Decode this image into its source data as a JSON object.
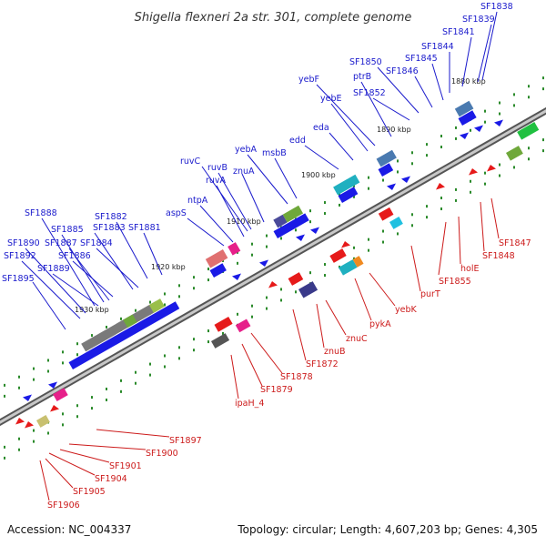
{
  "title": "Shigella flexneri 2a str. 301, complete genome",
  "accession": "Accession: NC_004337",
  "topology": "Topology: circular; Length: 4,607,203 bp; Genes: 4,305",
  "colors": {
    "forward": "#1a1ae6",
    "reverse": "#e61a1a",
    "backbone": "#8c8c8c"
  },
  "ticks": [
    {
      "label": "1880 kbp"
    },
    {
      "label": "1890 kbp"
    },
    {
      "label": "1900 kbp"
    },
    {
      "label": "1910 kbp"
    },
    {
      "label": "1920 kbp"
    },
    {
      "label": "1930 kbp"
    }
  ],
  "top_labels": [
    {
      "text": "SF1838"
    },
    {
      "text": "SF1839"
    },
    {
      "text": "SF1841"
    },
    {
      "text": "SF1844"
    },
    {
      "text": "SF1845"
    },
    {
      "text": "SF1846"
    },
    {
      "text": "SF1850"
    },
    {
      "text": "ptrB"
    },
    {
      "text": "yebF"
    },
    {
      "text": "SF1852"
    },
    {
      "text": "yebE"
    },
    {
      "text": "eda"
    },
    {
      "text": "edd"
    },
    {
      "text": "yebA"
    },
    {
      "text": "msbB"
    },
    {
      "text": "ruvC"
    },
    {
      "text": "ruvB"
    },
    {
      "text": "znuA"
    },
    {
      "text": "ruvA"
    },
    {
      "text": "ntpA"
    },
    {
      "text": "aspS"
    },
    {
      "text": "SF1888"
    },
    {
      "text": "SF1882"
    },
    {
      "text": "SF1885"
    },
    {
      "text": "SF1883"
    },
    {
      "text": "SF1881"
    },
    {
      "text": "SF1890"
    },
    {
      "text": "SF1887"
    },
    {
      "text": "SF1884"
    },
    {
      "text": "SF1892"
    },
    {
      "text": "SF1886"
    },
    {
      "text": "SF1889"
    },
    {
      "text": "SF1895"
    }
  ],
  "bottom_labels": [
    {
      "text": "SF1847"
    },
    {
      "text": "SF1848"
    },
    {
      "text": "holE"
    },
    {
      "text": "SF1855"
    },
    {
      "text": "purT"
    },
    {
      "text": "yebK"
    },
    {
      "text": "pykA"
    },
    {
      "text": "znuC"
    },
    {
      "text": "znuB"
    },
    {
      "text": "SF1872"
    },
    {
      "text": "SF1878"
    },
    {
      "text": "SF1879"
    },
    {
      "text": "ipaH_4"
    },
    {
      "text": "SF1897"
    },
    {
      "text": "SF1900"
    },
    {
      "text": "SF1901"
    },
    {
      "text": "SF1904"
    },
    {
      "text": "SF1905"
    },
    {
      "text": "SF1906"
    }
  ]
}
